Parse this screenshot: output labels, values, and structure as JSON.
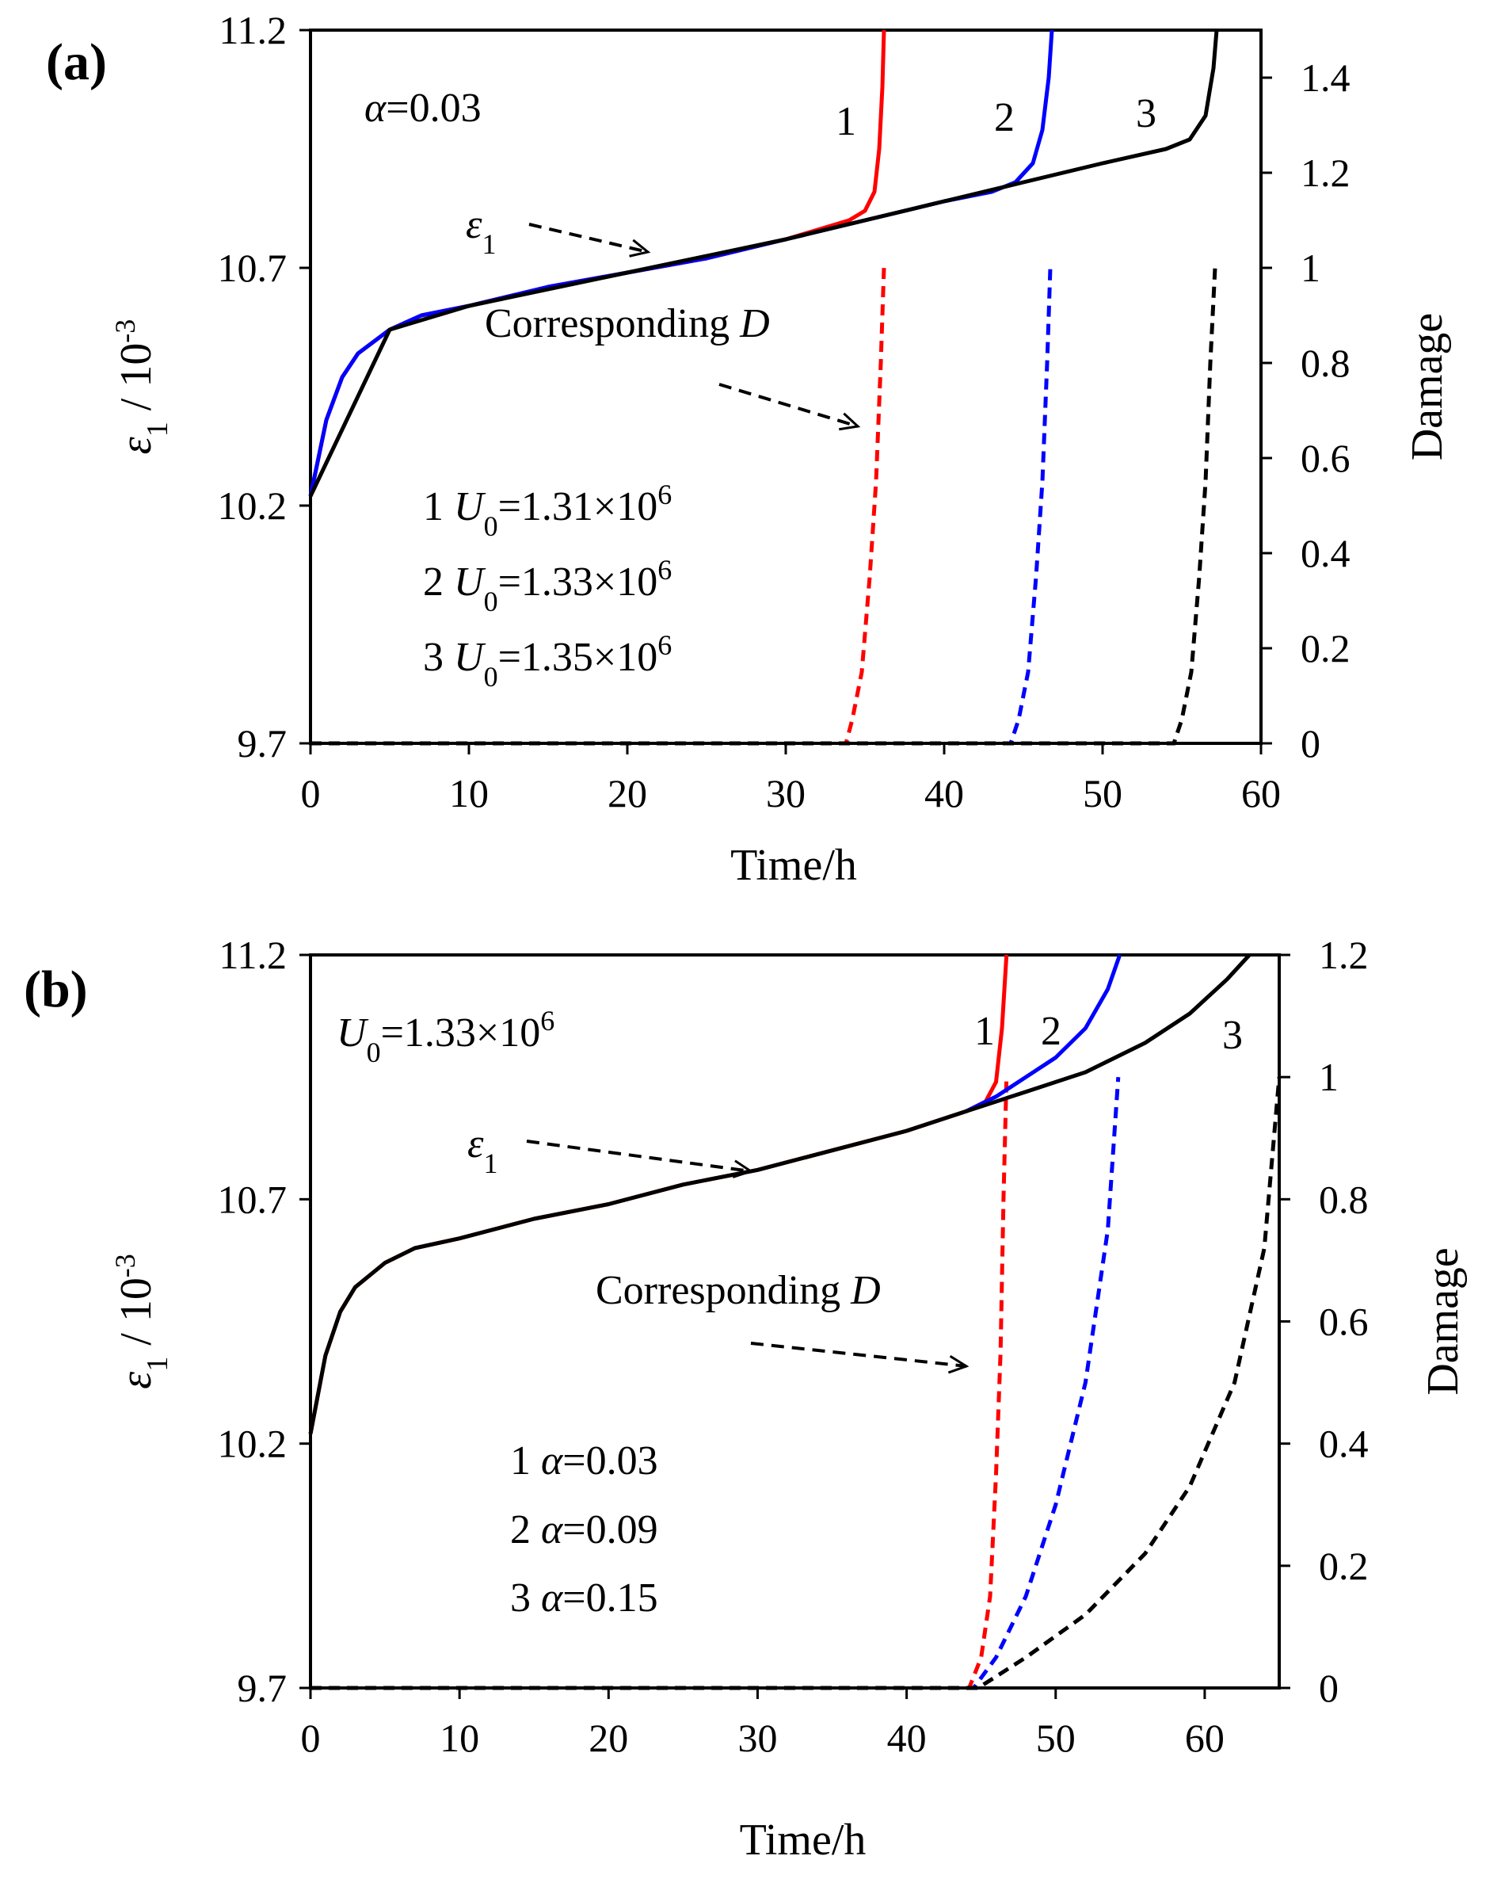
{
  "chart_data": [
    {
      "panel": "(a)",
      "type": "line",
      "xlabel": "Time/h",
      "ylabel_left": "ε1 / 10-3",
      "ylabel_right": "Damage",
      "x_ticks": [
        "0",
        "10",
        "20",
        "30",
        "40",
        "50",
        "60"
      ],
      "xlim": [
        0,
        60
      ],
      "left_ticks": [
        "9.7",
        "10.2",
        "10.7",
        "11.2"
      ],
      "ylim_left": [
        9.7,
        11.2
      ],
      "right_ticks": [
        "0",
        "0.2",
        "0.4",
        "0.6",
        "0.8",
        "1",
        "1.2",
        "1.4"
      ],
      "ylim_right": [
        0,
        1.5
      ],
      "param_label": "α=0.03",
      "strain_label": "ε1",
      "damage_label": "Corresponding D",
      "legend": [
        {
          "num": "1",
          "name": "U0",
          "value": "=1.31×106",
          "color": "#ff0000"
        },
        {
          "num": "2",
          "name": "U0",
          "value": "=1.33×106",
          "color": "#0000ff"
        },
        {
          "num": "3",
          "name": "U0",
          "value": "=1.35×106",
          "color": "#000000"
        }
      ],
      "strain_series": [
        {
          "name": "1",
          "color": "#ff0000",
          "x": [
            0,
            1,
            2,
            3,
            5,
            7,
            10,
            15,
            20,
            25,
            30,
            34,
            35,
            35.6,
            35.9,
            36.1,
            36.2
          ],
          "y": [
            10.22,
            10.38,
            10.47,
            10.52,
            10.57,
            10.6,
            10.62,
            10.66,
            10.69,
            10.72,
            10.76,
            10.8,
            10.82,
            10.86,
            10.95,
            11.08,
            11.2
          ]
        },
        {
          "name": "2",
          "color": "#0000ff",
          "x": [
            0,
            1,
            2,
            3,
            5,
            7,
            10,
            15,
            20,
            25,
            30,
            35,
            40,
            43,
            44.5,
            45.6,
            46.2,
            46.6,
            46.8
          ],
          "y": [
            10.22,
            10.38,
            10.47,
            10.52,
            10.57,
            10.6,
            10.62,
            10.66,
            10.69,
            10.72,
            10.76,
            10.8,
            10.84,
            10.86,
            10.88,
            10.92,
            10.99,
            11.1,
            11.2
          ]
        },
        {
          "name": "3",
          "color": "#000000",
          "x": [
            0,
            5,
            10,
            20,
            30,
            40,
            45,
            50,
            54,
            55.5,
            56.5,
            57.0,
            57.2
          ],
          "y": [
            10.22,
            10.57,
            10.62,
            10.69,
            10.76,
            10.84,
            10.88,
            10.92,
            10.95,
            10.97,
            11.02,
            11.12,
            11.2
          ]
        }
      ],
      "damage_series": [
        {
          "name": "1",
          "color": "#ff0000",
          "x": [
            0,
            33.8,
            34.2,
            34.8,
            35.3,
            35.7,
            36.0,
            36.2
          ],
          "y": [
            0,
            0,
            0.05,
            0.15,
            0.35,
            0.55,
            0.8,
            1.0
          ]
        },
        {
          "name": "2",
          "color": "#0000ff",
          "x": [
            0,
            44.2,
            44.7,
            45.3,
            45.8,
            46.2,
            46.5,
            46.7
          ],
          "y": [
            0,
            0,
            0.05,
            0.15,
            0.35,
            0.55,
            0.8,
            1.0
          ]
        },
        {
          "name": "3",
          "color": "#000000",
          "x": [
            0,
            54.5,
            55.0,
            55.6,
            56.1,
            56.5,
            56.8,
            57.1
          ],
          "y": [
            0,
            0,
            0.05,
            0.15,
            0.35,
            0.55,
            0.8,
            1.0
          ]
        }
      ]
    },
    {
      "panel": "(b)",
      "type": "line",
      "xlabel": "Time/h",
      "ylabel_left": "ε1 / 10-3",
      "ylabel_right": "Damage",
      "x_ticks": [
        "0",
        "10",
        "20",
        "30",
        "40",
        "50",
        "60"
      ],
      "xlim": [
        0,
        65
      ],
      "left_ticks": [
        "9.7",
        "10.2",
        "10.7",
        "11.2"
      ],
      "ylim_left": [
        9.7,
        11.2
      ],
      "right_ticks": [
        "0",
        "0.2",
        "0.4",
        "0.6",
        "0.8",
        "1",
        "1.2"
      ],
      "ylim_right": [
        0,
        1.2
      ],
      "param_label": "U0=1.33×106",
      "strain_label": "ε1",
      "damage_label": "Corresponding D",
      "legend": [
        {
          "num": "1",
          "name": "α",
          "value": "=0.03",
          "color": "#ff0000"
        },
        {
          "num": "2",
          "name": "α",
          "value": "=0.09",
          "color": "#0000ff"
        },
        {
          "num": "3",
          "name": "α",
          "value": "=0.15",
          "color": "#000000"
        }
      ],
      "strain_series": [
        {
          "name": "1",
          "color": "#ff0000",
          "x": [
            0,
            1,
            2,
            3,
            5,
            7,
            10,
            15,
            20,
            25,
            30,
            35,
            40,
            44,
            45.3,
            46.0,
            46.4,
            46.7
          ],
          "y": [
            10.22,
            10.38,
            10.47,
            10.52,
            10.57,
            10.6,
            10.62,
            10.66,
            10.69,
            10.73,
            10.76,
            10.8,
            10.84,
            10.88,
            10.9,
            10.94,
            11.05,
            11.2
          ]
        },
        {
          "name": "2",
          "color": "#0000ff",
          "x": [
            44,
            46,
            48,
            50,
            52,
            53.5,
            54.3
          ],
          "y": [
            10.88,
            10.91,
            10.95,
            10.99,
            11.05,
            11.13,
            11.2
          ]
        },
        {
          "name": "3",
          "color": "#000000",
          "x": [
            0,
            1,
            2,
            3,
            5,
            7,
            10,
            15,
            20,
            25,
            30,
            35,
            40,
            44,
            48,
            52,
            56,
            59,
            61.5,
            63
          ],
          "y": [
            10.22,
            10.38,
            10.47,
            10.52,
            10.57,
            10.6,
            10.62,
            10.66,
            10.69,
            10.73,
            10.76,
            10.8,
            10.84,
            10.88,
            10.92,
            10.96,
            11.02,
            11.08,
            11.15,
            11.2
          ]
        }
      ],
      "damage_series": [
        {
          "name": "1",
          "color": "#ff0000",
          "x": [
            0,
            44.2,
            45,
            45.6,
            46.0,
            46.3,
            46.5,
            46.7
          ],
          "y": [
            0,
            0,
            0.05,
            0.15,
            0.35,
            0.55,
            0.8,
            1.0
          ]
        },
        {
          "name": "2",
          "color": "#0000ff",
          "x": [
            0,
            44.5,
            46,
            48,
            50,
            52,
            53.5,
            54.2
          ],
          "y": [
            0,
            0,
            0.05,
            0.15,
            0.3,
            0.5,
            0.75,
            1.0
          ]
        },
        {
          "name": "3",
          "color": "#000000",
          "x": [
            0,
            44.8,
            48,
            52,
            56,
            59,
            62,
            64,
            65
          ],
          "y": [
            0,
            0,
            0.05,
            0.12,
            0.22,
            0.33,
            0.5,
            0.72,
            1.0
          ]
        }
      ]
    }
  ]
}
